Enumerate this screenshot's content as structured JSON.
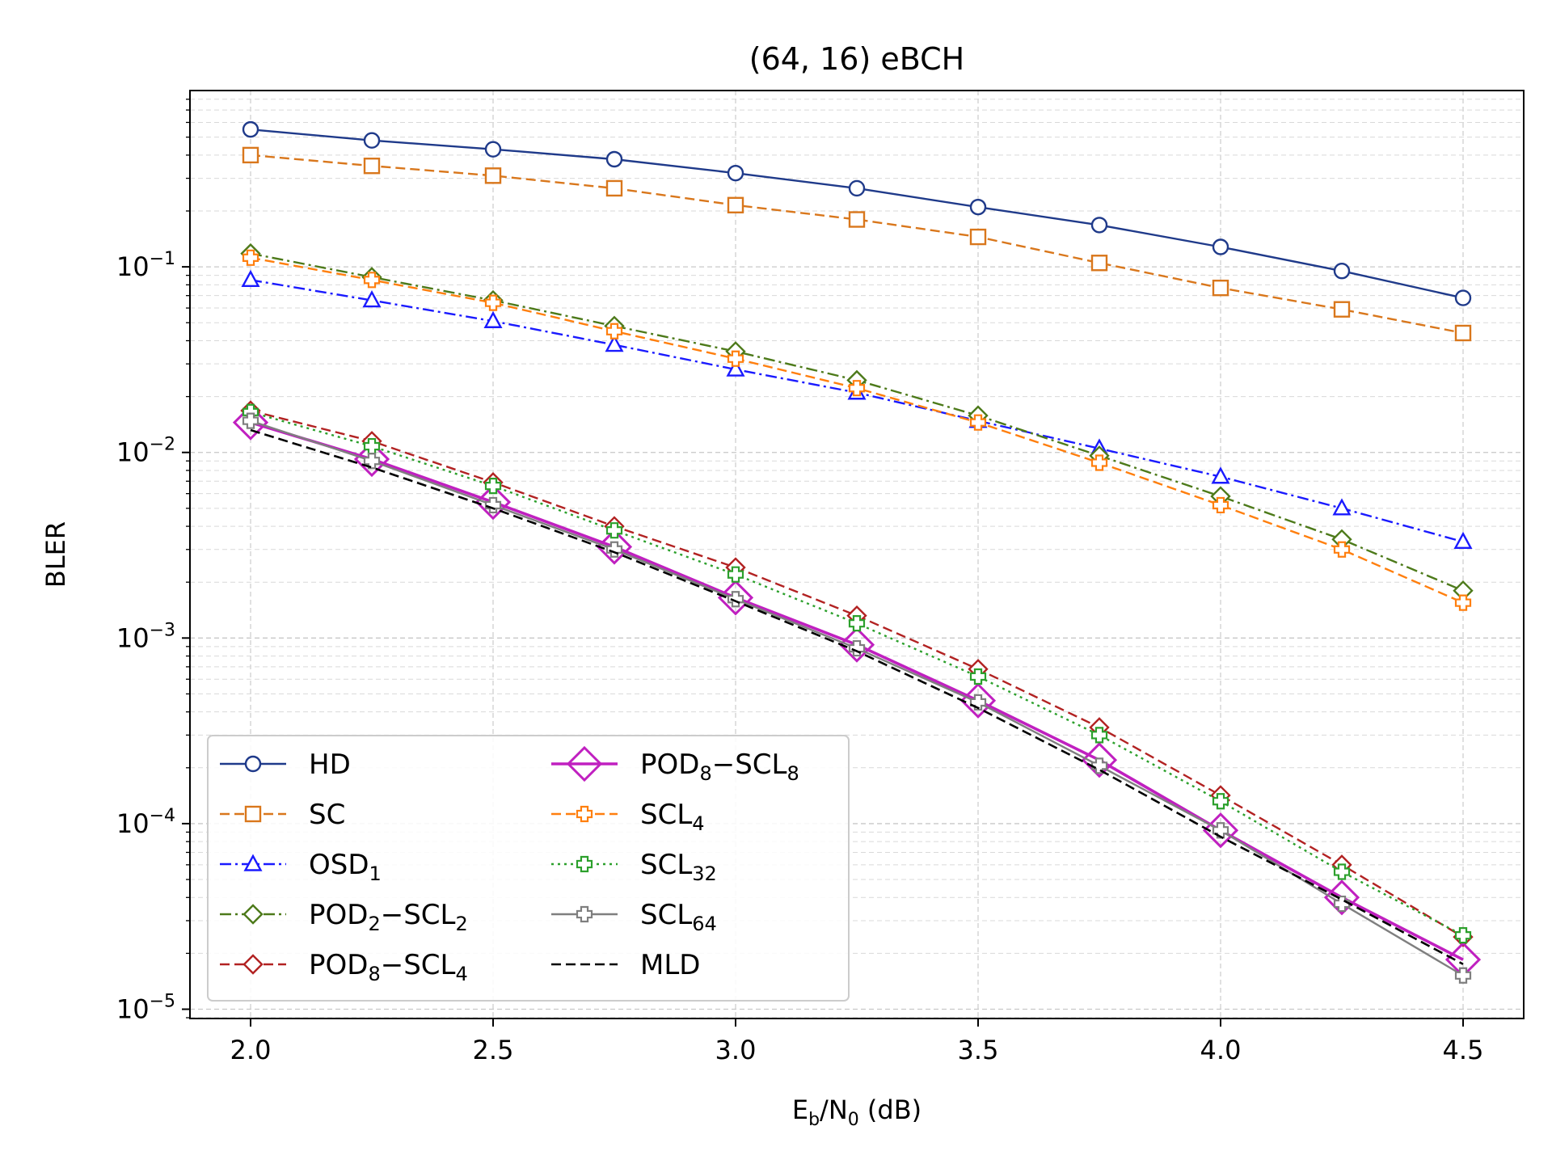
{
  "chart_data": {
    "type": "line",
    "title": "(64, 16) eBCH",
    "xlabel": {
      "main": "E",
      "sub1": "b",
      "mid": "/N",
      "sub2": "0",
      "tail": " (dB)"
    },
    "ylabel": "BLER",
    "xlim": [
      1.875,
      4.625
    ],
    "ylim_log10": [
      -5.05,
      -0.05
    ],
    "yscale": "log",
    "grid": "on",
    "legend_position": "lower-left",
    "x": [
      2.0,
      2.25,
      2.5,
      2.75,
      3.0,
      3.25,
      3.5,
      3.75,
      4.0,
      4.25,
      4.5
    ],
    "x_tick_labels": [
      "2.0",
      "2.5",
      "3.0",
      "3.5",
      "4.0",
      "4.5"
    ],
    "y_tick_labels": [
      {
        "base": "10",
        "exp": "−1"
      },
      {
        "base": "10",
        "exp": "−2"
      },
      {
        "base": "10",
        "exp": "−3"
      },
      {
        "base": "10",
        "exp": "−4"
      },
      {
        "base": "10",
        "exp": "−5"
      }
    ],
    "series": [
      {
        "key": "hd",
        "label_parts": [
          [
            "HD",
            ""
          ]
        ],
        "color": "#1f3a8a",
        "dash": "solid",
        "width": 2.4,
        "marker": "circle",
        "marker_size": 9,
        "values": [
          0.55,
          0.48,
          0.43,
          0.38,
          0.32,
          0.265,
          0.21,
          0.168,
          0.128,
          0.095,
          0.068
        ]
      },
      {
        "key": "sc",
        "label_parts": [
          [
            "SC",
            ""
          ]
        ],
        "color": "#d9771c",
        "dash": "dashed",
        "width": 2.4,
        "marker": "square",
        "marker_size": 9,
        "values": [
          0.4,
          0.35,
          0.31,
          0.265,
          0.215,
          0.18,
          0.145,
          0.105,
          0.077,
          0.059,
          0.044
        ]
      },
      {
        "key": "osd1",
        "label_parts": [
          [
            "OSD",
            ""
          ],
          [
            "1",
            "sub"
          ]
        ],
        "color": "#1a1aff",
        "dash": "dashdot",
        "width": 2.4,
        "marker": "triangle",
        "marker_size": 10,
        "values": [
          0.085,
          0.066,
          0.051,
          0.038,
          0.028,
          0.021,
          0.0148,
          0.0105,
          0.0074,
          0.005,
          0.0033
        ]
      },
      {
        "key": "pod2scl2",
        "label_parts": [
          [
            "POD",
            ""
          ],
          [
            "2",
            "sub"
          ],
          [
            "−SCL",
            ""
          ],
          [
            "2",
            "sub"
          ]
        ],
        "color": "#4d7a1a",
        "dash": "dashdot",
        "width": 2.4,
        "marker": "diamond",
        "marker_size": 11,
        "values": [
          0.118,
          0.088,
          0.066,
          0.048,
          0.035,
          0.0245,
          0.0158,
          0.0096,
          0.0058,
          0.0034,
          0.0018
        ]
      },
      {
        "key": "pod8scl4",
        "label_parts": [
          [
            "POD",
            ""
          ],
          [
            "8",
            "sub"
          ],
          [
            "−SCL",
            ""
          ],
          [
            "4",
            "sub"
          ]
        ],
        "color": "#b22222",
        "dash": "dashed",
        "width": 2.4,
        "marker": "diamond",
        "marker_size": 11,
        "values": [
          0.0168,
          0.0115,
          0.0069,
          0.004,
          0.0024,
          0.00132,
          0.00068,
          0.00033,
          0.000142,
          6e-05,
          2.45e-05
        ]
      },
      {
        "key": "pod8scl8",
        "label_parts": [
          [
            "POD",
            ""
          ],
          [
            "8",
            "sub"
          ],
          [
            "−SCL",
            ""
          ],
          [
            "8",
            "sub"
          ]
        ],
        "color": "#c020c0",
        "dash": "solid",
        "width": 3.6,
        "marker": "diamond",
        "marker_size": 20,
        "values": [
          0.0145,
          0.0092,
          0.0054,
          0.0031,
          0.00165,
          0.00092,
          0.00046,
          0.00022,
          9.2e-05,
          4e-05,
          1.85e-05
        ]
      },
      {
        "key": "scl4",
        "label_parts": [
          [
            "SCL",
            ""
          ],
          [
            "4",
            "sub"
          ]
        ],
        "color": "#ff7f0e",
        "dash": "dashed",
        "width": 2.4,
        "marker": "plus",
        "marker_size": 9,
        "values": [
          0.112,
          0.085,
          0.064,
          0.045,
          0.032,
          0.0222,
          0.0145,
          0.0088,
          0.0052,
          0.003,
          0.00155
        ]
      },
      {
        "key": "scl32",
        "label_parts": [
          [
            "SCL",
            ""
          ],
          [
            "32",
            "sub"
          ]
        ],
        "color": "#2ca02c",
        "dash": "dotted",
        "width": 2.4,
        "marker": "plus",
        "marker_size": 9,
        "values": [
          0.0165,
          0.0108,
          0.0066,
          0.0038,
          0.0022,
          0.0012,
          0.00062,
          0.0003,
          0.000132,
          5.5e-05,
          2.5e-05
        ]
      },
      {
        "key": "scl64",
        "label_parts": [
          [
            "SCL",
            ""
          ],
          [
            "64",
            "sub"
          ]
        ],
        "color": "#7f7f7f",
        "dash": "solid",
        "width": 2.4,
        "marker": "plus",
        "marker_size": 9,
        "values": [
          0.0148,
          0.009,
          0.0052,
          0.003,
          0.00162,
          0.00088,
          0.00045,
          0.000205,
          9.2e-05,
          3.7e-05,
          1.52e-05
        ]
      },
      {
        "key": "mld",
        "label_parts": [
          [
            "MLD",
            ""
          ]
        ],
        "color": "#000000",
        "dash": "dashed",
        "width": 2.6,
        "marker": "none",
        "marker_size": 0,
        "values": [
          0.0132,
          0.0083,
          0.005,
          0.0029,
          0.00158,
          0.00085,
          0.00042,
          0.000195,
          8.5e-05,
          3.9e-05,
          1.75e-05
        ]
      }
    ],
    "legend_columns": [
      [
        "hd",
        "sc",
        "osd1",
        "pod2scl2",
        "pod8scl4"
      ],
      [
        "pod8scl8",
        "scl4",
        "scl32",
        "scl64",
        "mld"
      ]
    ]
  }
}
